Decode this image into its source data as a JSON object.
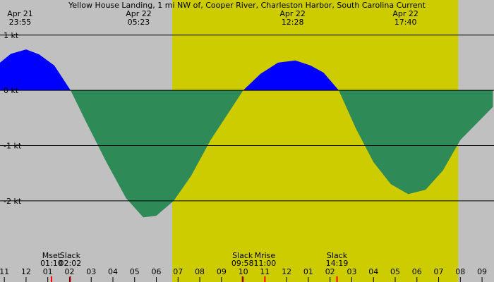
{
  "chart_data": {
    "type": "area",
    "title": "Yellow House Landing, 1 mi NW of, Cooper River, Charleston Harbor, South Carolina Current",
    "x": [
      -0.2,
      0.3,
      1.0,
      1.6,
      2.3,
      3.05,
      3.8,
      4.7,
      5.6,
      6.4,
      7.0,
      7.8,
      8.6,
      9.5,
      11.0,
      11.8,
      12.6,
      13.4,
      14.1,
      14.7,
      15.4,
      16.2,
      17.0,
      17.8,
      18.6,
      19.4,
      20.2,
      21.0,
      22.5
    ],
    "values": [
      0.5,
      0.66,
      0.74,
      0.65,
      0.45,
      0,
      -0.6,
      -1.3,
      -1.95,
      -2.3,
      -2.27,
      -2.0,
      -1.55,
      -0.9,
      0,
      0.3,
      0.5,
      0.54,
      0.45,
      0.32,
      0,
      -0.7,
      -1.3,
      -1.7,
      -1.88,
      -1.8,
      -1.45,
      -0.9,
      -0.3
    ],
    "flood_color": "#0000ff",
    "ebb_color": "#2e8b57",
    "day_color": "#cccc00",
    "night_color": "#c0c0c0",
    "daylight": [
      7.73,
      20.9
    ],
    "xlim": [
      -0.2,
      22.55
    ],
    "ylim": [
      -3.47,
      1.635
    ],
    "yticks": [
      {
        "value": 1,
        "label": "1 kt"
      },
      {
        "value": 0,
        "label": "0 kt"
      },
      {
        "value": -1,
        "label": "-1 kt"
      },
      {
        "value": -2,
        "label": "-2 kt"
      }
    ],
    "xticks": [
      {
        "value": 0,
        "label": "11"
      },
      {
        "value": 1,
        "label": "12"
      },
      {
        "value": 2,
        "label": "01"
      },
      {
        "value": 3,
        "label": "02"
      },
      {
        "value": 4,
        "label": "03"
      },
      {
        "value": 5,
        "label": "04"
      },
      {
        "value": 6,
        "label": "05"
      },
      {
        "value": 7,
        "label": "06"
      },
      {
        "value": 8,
        "label": "07"
      },
      {
        "value": 9,
        "label": "08"
      },
      {
        "value": 10,
        "label": "09"
      },
      {
        "value": 11,
        "label": "10"
      },
      {
        "value": 12,
        "label": "11"
      },
      {
        "value": 13,
        "label": "12"
      },
      {
        "value": 14,
        "label": "01"
      },
      {
        "value": 15,
        "label": "02"
      },
      {
        "value": 16,
        "label": "03"
      },
      {
        "value": 17,
        "label": "04"
      },
      {
        "value": 18,
        "label": "05"
      },
      {
        "value": 19,
        "label": "06"
      },
      {
        "value": 20,
        "label": "07"
      },
      {
        "value": 21,
        "label": "08"
      },
      {
        "value": 22,
        "label": "09"
      }
    ],
    "peaks": [
      {
        "date": "Apr 21",
        "time": "23:55",
        "x": 0.92
      },
      {
        "date": "Apr 22",
        "time": "05:23",
        "x": 6.38
      },
      {
        "date": "Apr 22",
        "time": "12:28",
        "x": 13.47
      },
      {
        "date": "Apr 22",
        "time": "17:40",
        "x": 18.67
      }
    ],
    "events": [
      {
        "name": "Mset",
        "time": "01:10",
        "x": 2.17,
        "color": "#ff0000"
      },
      {
        "name": "Slack",
        "time": "02:02",
        "x": 3.03,
        "color": "#aa0000"
      },
      {
        "name": "Slack",
        "time": "09:58",
        "x": 10.97,
        "color": "#aa0000"
      },
      {
        "name": "Mrise",
        "time": "11:00",
        "x": 12.0,
        "color": "#ff0000"
      },
      {
        "name": "Slack",
        "time": "14:19",
        "x": 15.32,
        "color": "#ff0000"
      }
    ]
  }
}
